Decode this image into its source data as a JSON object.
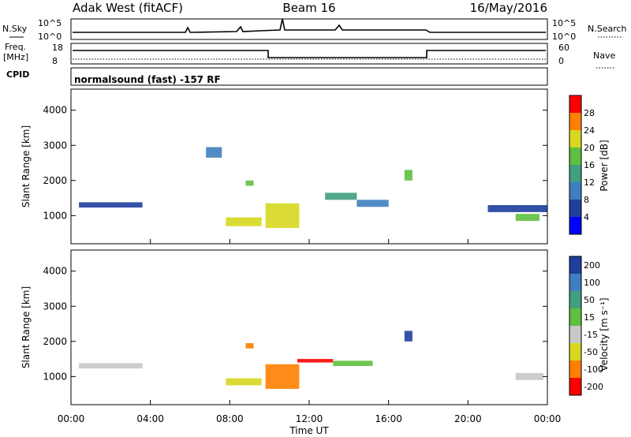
{
  "header": {
    "station": "Adak West (fitACF)",
    "beam": "Beam 16",
    "date": "16/May/2016"
  },
  "top_panels": {
    "nsky_label": "N.Sky",
    "nsearch_label": "N.Search",
    "noise_ticks": [
      "10^5",
      "10^0"
    ],
    "freq_label_1": "Freq.",
    "freq_label_2": "[MHz]",
    "freq_ticks": [
      "18",
      "8"
    ],
    "nave_label": "Nave",
    "nave_ticks": [
      "60",
      "0"
    ],
    "cpid_label": "CPID",
    "cpid_text": "normalsound (fast) -157 RF"
  },
  "colors": {
    "blue": "#0000ff",
    "navy": "#1f3f9f",
    "steel": "#3f7fbf",
    "teal": "#3f9f7f",
    "green": "#5fbf3f",
    "yellow": "#d7d71f",
    "orange": "#ff7f00",
    "red": "#ff0000",
    "grey": "#c8c8c8",
    "light_green": "#7fdf3f"
  },
  "chart_data": [
    {
      "type": "heatmap",
      "quantity": "Power",
      "xlabel": "Time UT",
      "ylabel": "Slant Range [km]",
      "xlim": [
        "00:00",
        "24:00"
      ],
      "ylim": [
        200,
        4600
      ],
      "x_ticks": [
        "00:00",
        "04:00",
        "08:00",
        "12:00",
        "16:00",
        "20:00",
        "00:00"
      ],
      "y_ticks": [
        1000,
        2000,
        3000,
        4000
      ],
      "colorbar": {
        "label": "Power [dB]",
        "ticks": [
          4,
          8,
          12,
          16,
          20,
          24,
          28
        ],
        "range": [
          0,
          30
        ],
        "colors": [
          "#0000ff",
          "#1f3f9f",
          "#3f7fbf",
          "#3f9f7f",
          "#5fbf3f",
          "#d7d71f",
          "#ff7f00",
          "#ff0000"
        ]
      },
      "patches": [
        {
          "t0": 0.4,
          "t1": 3.6,
          "r0": 1230,
          "r1": 1380,
          "value": 6
        },
        {
          "t0": 7.8,
          "t1": 9.6,
          "r0": 700,
          "r1": 950,
          "value": 22
        },
        {
          "t0": 9.8,
          "t1": 11.5,
          "r0": 650,
          "r1": 1350,
          "value": 20
        },
        {
          "t0": 6.8,
          "t1": 7.6,
          "r0": 2650,
          "r1": 2950,
          "value": 8
        },
        {
          "t0": 8.8,
          "t1": 9.2,
          "r0": 1850,
          "r1": 2000,
          "value": 16
        },
        {
          "t0": 12.8,
          "t1": 14.4,
          "r0": 1450,
          "r1": 1650,
          "value": 12
        },
        {
          "t0": 14.4,
          "t1": 16.0,
          "r0": 1250,
          "r1": 1450,
          "value": 10
        },
        {
          "t0": 16.8,
          "t1": 17.2,
          "r0": 2000,
          "r1": 2300,
          "value": 16
        },
        {
          "t0": 21.0,
          "t1": 24.0,
          "r0": 1100,
          "r1": 1300,
          "value": 6
        },
        {
          "t0": 22.4,
          "t1": 23.6,
          "r0": 850,
          "r1": 1050,
          "value": 18
        }
      ]
    },
    {
      "type": "heatmap",
      "quantity": "Velocity",
      "xlabel": "Time UT",
      "ylabel": "Slant Range [km]",
      "xlim": [
        "00:00",
        "24:00"
      ],
      "ylim": [
        200,
        4600
      ],
      "x_ticks": [
        "00:00",
        "04:00",
        "08:00",
        "12:00",
        "16:00",
        "20:00",
        "00:00"
      ],
      "y_ticks": [
        1000,
        2000,
        3000,
        4000
      ],
      "colorbar": {
        "label": "Velocity [m s⁻¹]",
        "ticks": [
          "200",
          "100",
          "50",
          "15",
          "-15",
          "-50",
          "-100",
          "-200"
        ],
        "colors": [
          "#1f3f9f",
          "#3f7fbf",
          "#3f9f7f",
          "#5fbf3f",
          "#c8c8c8",
          "#d7d71f",
          "#ff7f00",
          "#ff0000"
        ]
      },
      "patches": [
        {
          "t0": 0.4,
          "t1": 3.6,
          "r0": 1230,
          "r1": 1380,
          "color": "grey"
        },
        {
          "t0": 7.8,
          "t1": 9.6,
          "r0": 750,
          "r1": 950,
          "color": "yellow"
        },
        {
          "t0": 9.8,
          "t1": 11.5,
          "r0": 650,
          "r1": 1350,
          "color": "orange"
        },
        {
          "t0": 8.8,
          "t1": 9.2,
          "r0": 1800,
          "r1": 1950,
          "color": "orange"
        },
        {
          "t0": 11.4,
          "t1": 13.2,
          "r0": 1400,
          "r1": 1500,
          "color": "red"
        },
        {
          "t0": 13.2,
          "t1": 15.2,
          "r0": 1300,
          "r1": 1450,
          "color": "green"
        },
        {
          "t0": 16.8,
          "t1": 17.2,
          "r0": 2000,
          "r1": 2300,
          "color": "navy"
        },
        {
          "t0": 22.4,
          "t1": 23.8,
          "r0": 900,
          "r1": 1100,
          "color": "grey"
        }
      ]
    }
  ]
}
